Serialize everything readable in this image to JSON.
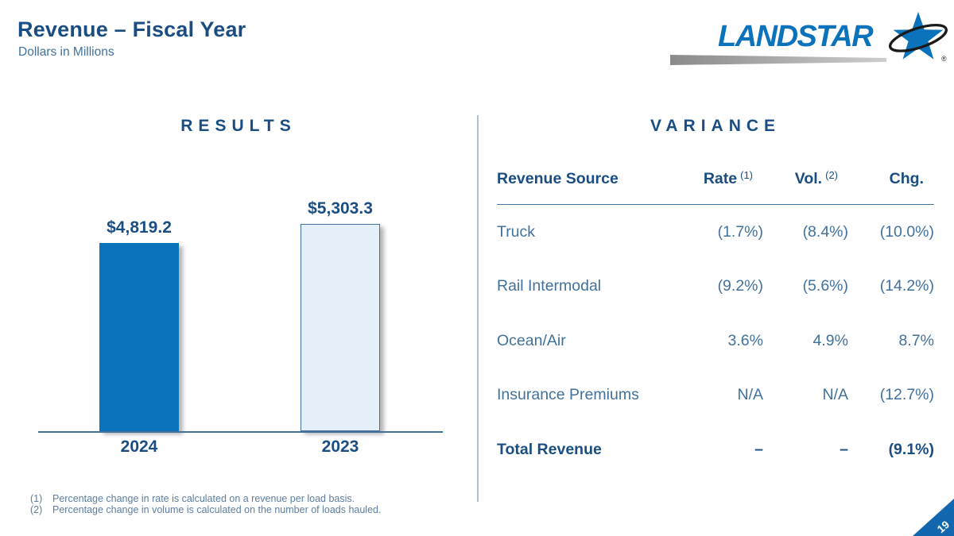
{
  "colors": {
    "navy": "#1A4E82",
    "steel": "#41719C",
    "bright": "#0B72BC",
    "bar_2023_fill": "#E4EFF9",
    "divider": "#A9C2D8",
    "footnote": "#5D7EA0",
    "corner": "#1367AE"
  },
  "header": {
    "title": "Revenue – Fiscal Year",
    "subtitle": "Dollars in Millions"
  },
  "logo": {
    "brand": "LANDSTAR",
    "registered": "®"
  },
  "chart_data": {
    "type": "bar",
    "title": "RESULTS",
    "categories": [
      "2024",
      "2023"
    ],
    "values": [
      4819.2,
      5303.3
    ],
    "data_labels": [
      "$4,819.2",
      "$5,303.3"
    ],
    "units": "Dollars in Millions",
    "ylim": [
      0,
      5303.3
    ],
    "grid": false,
    "legend": "none",
    "bar_colors": [
      "#0B72BC",
      "#E4EFF9"
    ]
  },
  "variance": {
    "heading": "VARIANCE",
    "col_source": "Revenue Source",
    "col_rate": "Rate",
    "sup_rate": "(1)",
    "col_vol": "Vol.",
    "sup_vol": "(2)",
    "col_chg": "Chg.",
    "rows": [
      {
        "source": "Truck",
        "rate": "(1.7%)",
        "vol": "(8.4%)",
        "chg": "(10.0%)"
      },
      {
        "source": "Rail Intermodal",
        "rate": "(9.2%)",
        "vol": "(5.6%)",
        "chg": "(14.2%)"
      },
      {
        "source": "Ocean/Air",
        "rate": "3.6%",
        "vol": "4.9%",
        "chg": "8.7%"
      },
      {
        "source": "Insurance Premiums",
        "rate": "N/A",
        "vol": "N/A",
        "chg": "(12.7%)"
      },
      {
        "source": "Total Revenue",
        "rate": "–",
        "vol": "–",
        "chg": "(9.1%)"
      }
    ]
  },
  "footnotes": [
    {
      "marker": "(1)",
      "text": "Percentage change in rate is calculated on a revenue per load basis."
    },
    {
      "marker": "(2)",
      "text": "Percentage change in volume is calculated on the number of loads hauled."
    }
  ],
  "page": {
    "number": "19"
  }
}
